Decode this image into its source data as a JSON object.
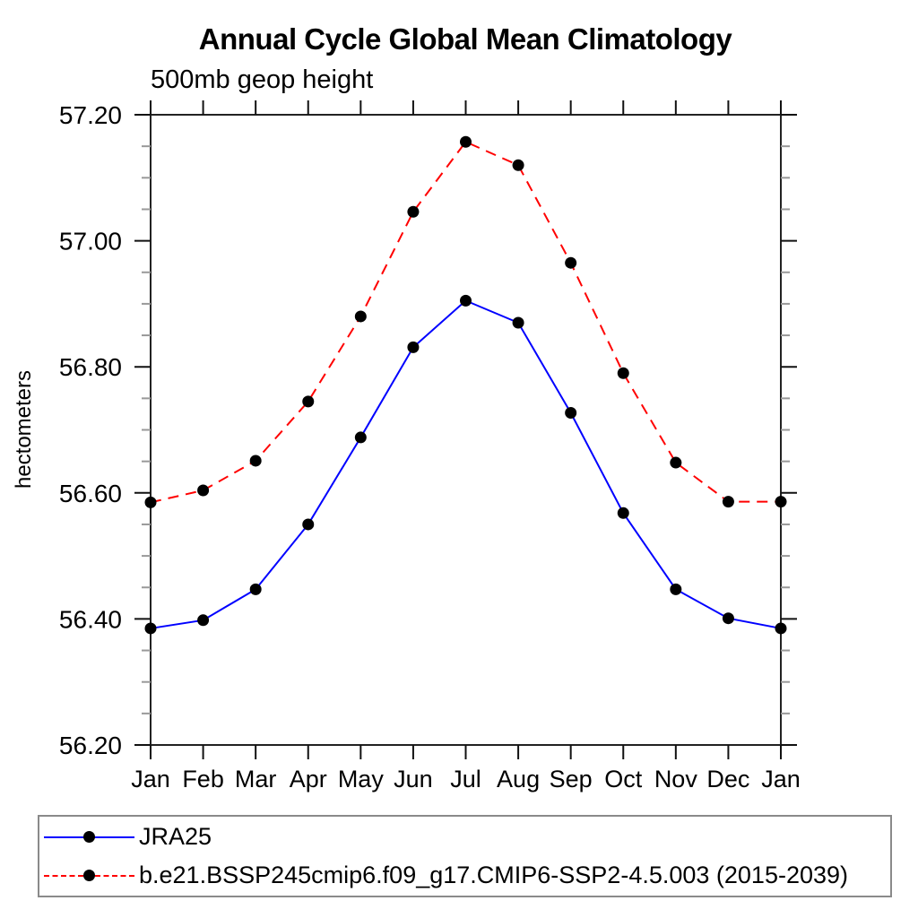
{
  "chart_data": {
    "type": "line",
    "title": "Annual Cycle Global Mean Climatology",
    "subtitle": "500mb geop height",
    "ylabel": "hectometers",
    "xlabel": "",
    "categories": [
      "Jan",
      "Feb",
      "Mar",
      "Apr",
      "May",
      "Jun",
      "Jul",
      "Aug",
      "Sep",
      "Oct",
      "Nov",
      "Dec",
      "Jan"
    ],
    "ylim": [
      56.2,
      57.2
    ],
    "ytick_interval": 0.2,
    "yminor_interval": 0.05,
    "ytick_labels": [
      "56.20",
      "56.40",
      "56.60",
      "56.80",
      "57.00",
      "57.20"
    ],
    "grid": false,
    "legend_position": "bottom-left-box",
    "series": [
      {
        "name": "JRA25",
        "color": "#0000ff",
        "line_style": "solid",
        "marker": "filled-circle",
        "marker_color": "#000000",
        "values": [
          56.385,
          56.398,
          56.447,
          56.55,
          56.688,
          56.831,
          56.905,
          56.87,
          56.727,
          56.568,
          56.447,
          56.401,
          56.385
        ]
      },
      {
        "name": "b.e21.BSSP245cmip6.f09_g17.CMIP6-SSP2-4.5.003 (2015-2039)",
        "color": "#ff0000",
        "line_style": "dashed",
        "marker": "filled-circle",
        "marker_color": "#000000",
        "values": [
          56.585,
          56.604,
          56.651,
          56.745,
          56.88,
          57.046,
          57.157,
          57.12,
          56.965,
          56.79,
          56.648,
          56.586,
          56.586
        ]
      }
    ],
    "axis_colors": {
      "frame": "#222222",
      "major_tick": "#111111",
      "minor_tick": "#999999"
    }
  }
}
